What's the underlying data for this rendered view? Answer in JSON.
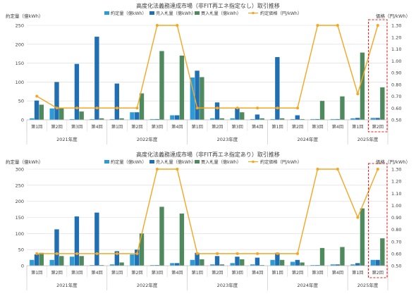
{
  "colors": {
    "contract_volume": "#2E9BD6",
    "sell_bids": "#1F6FB2",
    "buy_bids": "#4E8A5E",
    "contract_price": "#F5A623",
    "highlight_box": "#E02020",
    "grid": "#D9D9D9",
    "axis_text": "#404040"
  },
  "chart_data": [
    {
      "type": "bar",
      "title": "高度化法義務達成市場（非FIT再エネ指定なし）取引推移",
      "ylabel_left": "約定量（億kWh）",
      "ylabel_right": "価格（円/kWh）",
      "ylim_left": [
        0,
        250
      ],
      "ylim_right": [
        0.5,
        1.3
      ],
      "yticks_left": [
        "0",
        "50",
        "100",
        "150",
        "200",
        "250"
      ],
      "yticks_right": [
        "0.50",
        "0.60",
        "0.70",
        "0.80",
        "0.90",
        "1.00",
        "1.10",
        "1.20",
        "1.30"
      ],
      "grid": true,
      "legend_position": "top",
      "legend": [
        "約定量（億kWh）",
        "売入札量（億kWh）",
        "買入札量（億kWh）",
        "約定価格（円/kWh）"
      ],
      "categories": [
        "第1回",
        "第2回",
        "第3回",
        "第4回",
        "第1回",
        "第2回",
        "第3回",
        "第4回",
        "第1回",
        "第2回",
        "第3回",
        "第4回",
        "第1回",
        "第2回",
        "第3回",
        "第4回",
        "第1回",
        "第2回"
      ],
      "years": [
        {
          "label": "2021年度",
          "count": 4
        },
        {
          "label": "2022年度",
          "count": 4
        },
        {
          "label": "2023年度",
          "count": 4
        },
        {
          "label": "2024年度",
          "count": 4
        },
        {
          "label": "2025年度",
          "count": 2
        }
      ],
      "series": [
        {
          "name": "約定量（億kWh）",
          "kind": "bar",
          "axis": "left",
          "values": [
            4,
            30,
            2,
            2,
            2,
            20,
            2,
            12,
            112,
            4,
            4,
            2,
            2,
            2,
            2,
            2,
            4,
            5
          ]
        },
        {
          "name": "売入札量（億kWh）",
          "kind": "bar",
          "axis": "left",
          "values": [
            51,
            100,
            148,
            220,
            96,
            20,
            2,
            12,
            130,
            46,
            30,
            14,
            166,
            12,
            2,
            2,
            5,
            5
          ]
        },
        {
          "name": "買入札量（億kWh）",
          "kind": "bar",
          "axis": "left",
          "values": [
            40,
            30,
            22,
            4,
            4,
            70,
            182,
            170,
            113,
            4,
            20,
            4,
            4,
            2,
            50,
            62,
            178,
            86
          ]
        },
        {
          "name": "約定価格（円/kWh）",
          "kind": "line",
          "axis": "right",
          "values": [
            0.7,
            0.6,
            0.6,
            0.6,
            0.6,
            0.6,
            1.3,
            1.3,
            0.6,
            0.6,
            0.6,
            0.6,
            0.6,
            0.6,
            1.3,
            1.3,
            0.72,
            1.3
          ]
        }
      ],
      "highlight_index": 17
    },
    {
      "type": "bar",
      "title": "高度化法義務達成市場（非FIT再エネ指定あり）取引推移",
      "ylabel_left": "約定量（億kWh）",
      "ylabel_right": "価格（円/kWh）",
      "ylim_left": [
        0,
        300
      ],
      "ylim_right": [
        0.5,
        1.3
      ],
      "yticks_left": [
        "0",
        "50",
        "100",
        "150",
        "200",
        "250",
        "300"
      ],
      "yticks_right": [
        "0.50",
        "0.60",
        "0.70",
        "0.80",
        "0.90",
        "1.00",
        "1.10",
        "1.20",
        "1.30"
      ],
      "grid": true,
      "legend_position": "top",
      "legend": [
        "約定量（億kWh）",
        "売入札量（億kWh）",
        "買入札量（億kWh）",
        "約定価格（円/kWh）"
      ],
      "categories": [
        "第1回",
        "第2回",
        "第3回",
        "第4回",
        "第1回",
        "第2回",
        "第3回",
        "第4回",
        "第1回",
        "第2回",
        "第3回",
        "第4回",
        "第1回",
        "第2回",
        "第3回",
        "第4回",
        "第1回",
        "第2回"
      ],
      "years": [
        {
          "label": "2021年度",
          "count": 4
        },
        {
          "label": "2022年度",
          "count": 4
        },
        {
          "label": "2023年度",
          "count": 4
        },
        {
          "label": "2024年度",
          "count": 4
        },
        {
          "label": "2025年度",
          "count": 2
        }
      ],
      "series": [
        {
          "name": "約定量（億kWh）",
          "kind": "bar",
          "axis": "left",
          "values": [
            18,
            18,
            28,
            2,
            4,
            35,
            2,
            8,
            18,
            4,
            8,
            4,
            18,
            12,
            2,
            4,
            4,
            18
          ]
        },
        {
          "name": "売入札量（億kWh）",
          "kind": "bar",
          "axis": "left",
          "values": [
            35,
            113,
            153,
            165,
            45,
            50,
            2,
            8,
            40,
            30,
            28,
            25,
            40,
            18,
            2,
            4,
            8,
            18
          ]
        },
        {
          "name": "買入札量（億kWh）",
          "kind": "bar",
          "axis": "left",
          "values": [
            40,
            30,
            30,
            2,
            10,
            100,
            183,
            162,
            20,
            4,
            20,
            2,
            18,
            10,
            55,
            58,
            178,
            85
          ]
        },
        {
          "name": "約定価格（円/kWh）",
          "kind": "line",
          "axis": "right",
          "values": [
            0.6,
            0.6,
            0.6,
            0.6,
            0.6,
            0.6,
            1.3,
            1.3,
            0.6,
            0.6,
            0.6,
            0.6,
            0.6,
            0.6,
            1.3,
            1.3,
            0.9,
            1.3
          ]
        }
      ],
      "highlight_index": 17
    }
  ]
}
